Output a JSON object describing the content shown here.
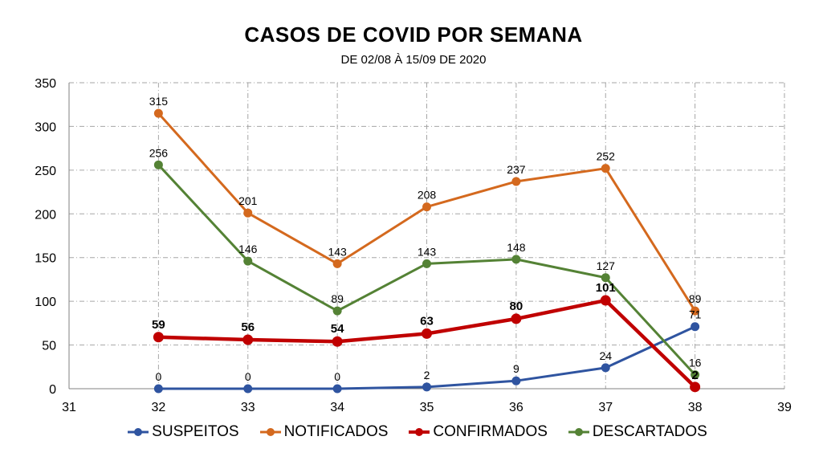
{
  "chart_data": {
    "type": "line",
    "title": "CASOS DE COVID POR SEMANA",
    "subtitle": "DE 02/08 À 15/09 DE 2020",
    "xlabel": "",
    "ylabel": "",
    "xlim": [
      31,
      39
    ],
    "ylim": [
      0,
      350
    ],
    "x_ticks": [
      "31",
      "32",
      "33",
      "34",
      "35",
      "36",
      "37",
      "38",
      "39"
    ],
    "y_ticks": [
      "0",
      "50",
      "100",
      "150",
      "200",
      "250",
      "300",
      "350"
    ],
    "grid": true,
    "legend_position": "bottom",
    "x": [
      32,
      33,
      34,
      35,
      36,
      37,
      38
    ],
    "series": [
      {
        "name": "SUSPEITOS",
        "color": "#2F54A0",
        "values": [
          0,
          0,
          0,
          2,
          9,
          24,
          71
        ],
        "labels": [
          "0",
          "0",
          "0",
          "2",
          "9",
          "24",
          "71"
        ],
        "bold": false
      },
      {
        "name": "NOTIFICADOS",
        "color": "#D4691E",
        "values": [
          315,
          201,
          143,
          208,
          237,
          252,
          89
        ],
        "labels": [
          "315",
          "201",
          "143",
          "208",
          "237",
          "252",
          "89"
        ],
        "bold": false
      },
      {
        "name": "CONFIRMADOS",
        "color": "#C00000",
        "values": [
          59,
          56,
          54,
          63,
          80,
          101,
          2
        ],
        "labels": [
          "59",
          "56",
          "54",
          "63",
          "80",
          "101",
          "2"
        ],
        "bold": true
      },
      {
        "name": "DESCARTADOS",
        "color": "#548235",
        "values": [
          256,
          146,
          89,
          143,
          148,
          127,
          16
        ],
        "labels": [
          "256",
          "146",
          "89",
          "143",
          "148",
          "127",
          "16"
        ],
        "bold": false
      }
    ]
  }
}
